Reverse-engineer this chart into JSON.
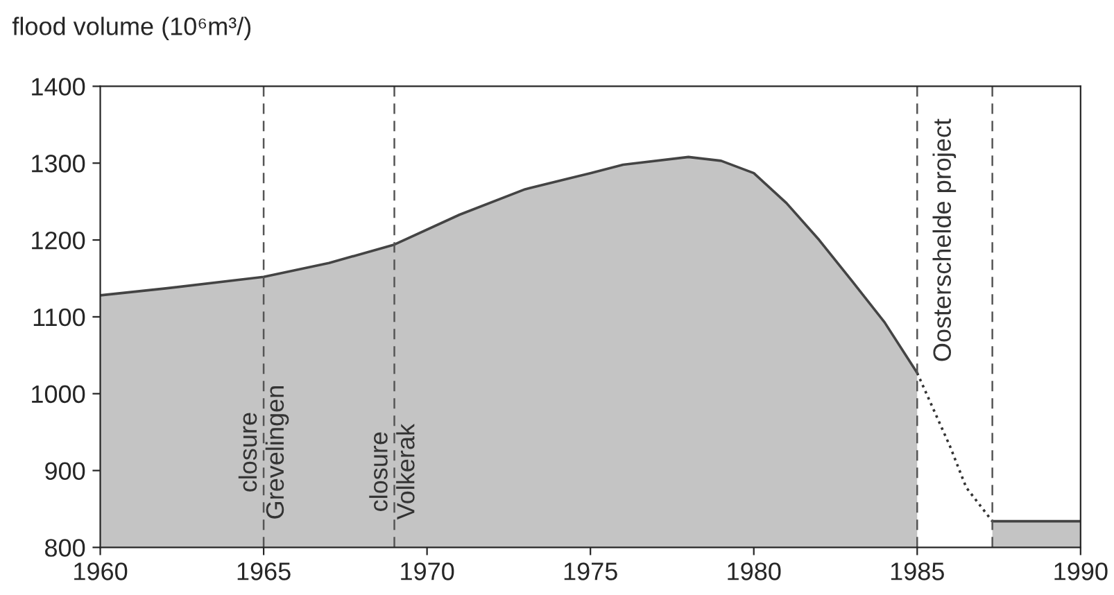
{
  "chart_data": {
    "type": "area",
    "ylabel": "flood volume (10⁶m³/)",
    "series": [
      {
        "color": "#c4c4c4",
        "x": [
          1960,
          1962,
          1965,
          1967,
          1969,
          1971,
          1973,
          1975,
          1976,
          1978,
          1979,
          1980,
          1981,
          1982,
          1983,
          1984,
          1985
        ],
        "values": [
          1128,
          1137,
          1152,
          1170,
          1194,
          1233,
          1266,
          1287,
          1298,
          1308,
          1303,
          1287,
          1248,
          1200,
          1147,
          1093,
          1027
        ]
      },
      {
        "type": "line",
        "line_style": "dotted",
        "color": "#333333",
        "x": [
          1985,
          1986,
          1986.5,
          1987.3
        ],
        "values": [
          1027,
          932,
          878,
          834
        ]
      },
      {
        "color": "#c4c4c4",
        "x": [
          1987.3,
          1990
        ],
        "values": [
          834,
          834
        ]
      }
    ],
    "ref_lines": [
      {
        "axis": "x",
        "value": 1965,
        "label": "closure\nGrevelingen",
        "line_style": "dashed"
      },
      {
        "axis": "x",
        "value": 1969,
        "label": "closure\nVolkerak",
        "line_style": "dashed"
      },
      {
        "axis": "x",
        "value": 1985,
        "label": "Oosterschelde project",
        "line_style": "dashed"
      },
      {
        "axis": "x",
        "value": 1987.3,
        "label": null,
        "line_style": "dashed"
      }
    ],
    "xlim": [
      1960,
      1990
    ],
    "xticks": [
      1960,
      1965,
      1970,
      1975,
      1980,
      1985,
      1990
    ],
    "ylim": [
      800,
      1400
    ],
    "yticks": [
      800,
      900,
      1000,
      1100,
      1200,
      1300,
      1400
    ],
    "grid": false,
    "legend": false
  }
}
